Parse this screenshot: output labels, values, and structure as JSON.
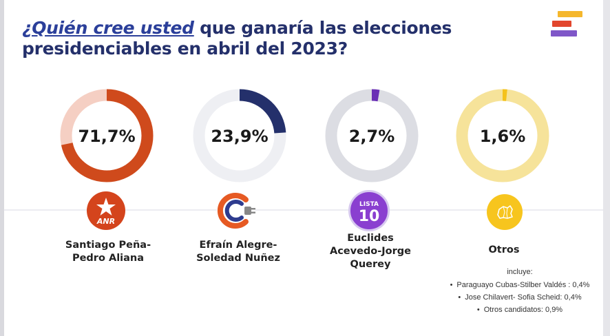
{
  "header": {
    "title_question": "¿Quién cree usted",
    "title_rest": " que ganaría las elecciones",
    "title_line2": "presidenciables en abril del 2023?"
  },
  "brand_colors": [
    "#f5b72c",
    "#e2462d",
    "#7f57c8"
  ],
  "chart_data": {
    "type": "pie",
    "title": "¿Quién cree usted que ganaría las elecciones presidenciables en abril del 2023?",
    "categories": [
      "Santiago Peña-Pedro Aliana",
      "Efraín Alegre-Soledad Nuñez",
      "Euclides Acevedo-Jorge Querey",
      "Otros"
    ],
    "values": [
      71.7,
      23.9,
      2.7,
      1.6
    ],
    "value_labels": [
      "71,7%",
      "23,9%",
      "2,7%",
      "1,6%"
    ],
    "colors": [
      "#cf4a1c",
      "#24306b",
      "#6a2fb5",
      "#f4c21c"
    ],
    "track_colors": [
      "#f5cfc3",
      "#eeeff3",
      "#dcdde3",
      "#f6e39a"
    ]
  },
  "candidates": [
    {
      "line1": "Santiago Peña-",
      "line2": "Pedro Aliana",
      "logo_text": "ANR",
      "logo_icon": "star-icon"
    },
    {
      "line1": "Efraín Alegre-",
      "line2": "Soledad Nuñez",
      "logo_text": "",
      "logo_icon": "c-plug-icon"
    },
    {
      "line1": "Euclides",
      "line2": "Acevedo-Jorge",
      "line3": "Querey",
      "logo_text": "LISTA 10",
      "logo_icon": "lista-10-icon"
    },
    {
      "line1": "Otros",
      "logo_icon": "map-icon"
    }
  ],
  "notes": {
    "includes": "incluye:",
    "items": [
      "Paraguayo Cubas-Stilber Valdés : 0,4%",
      "Jose Chilavert- Sofia Scheid: 0,4%",
      "Otros candidatos: 0,9%"
    ]
  }
}
